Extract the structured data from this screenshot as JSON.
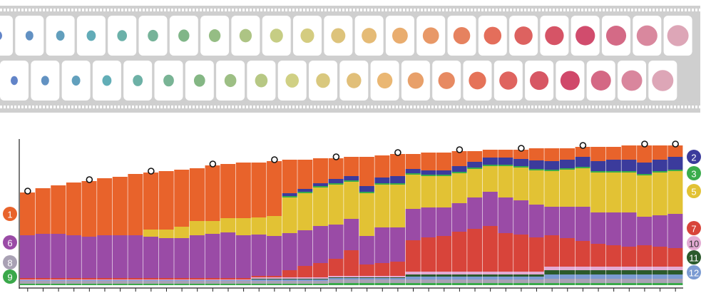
{
  "chart_data": {
    "type": "stacked-bar",
    "categories": [
      null,
      null,
      null,
      null,
      null,
      null,
      null,
      null,
      null,
      null,
      null,
      null,
      null,
      null,
      null,
      null,
      null,
      null,
      null,
      null,
      null,
      null,
      null,
      null,
      null,
      null,
      null,
      null,
      null,
      null,
      null,
      null,
      null,
      null,
      null,
      null,
      null,
      null,
      null,
      null,
      null,
      null,
      null
    ],
    "ylim": [
      0,
      100
    ],
    "markers": [
      0,
      4,
      8,
      12,
      16,
      20,
      24,
      28,
      32,
      36,
      40,
      42
    ],
    "series": [
      {
        "name": "9",
        "color": "#3aa84a",
        "values": [
          1,
          1,
          1,
          1,
          1,
          1,
          1,
          1,
          1,
          1,
          1,
          1,
          1,
          1,
          1,
          1,
          1,
          1,
          1,
          1,
          1.5,
          1.5,
          1.5,
          1.5,
          1.5,
          1.5,
          1.5,
          1.5,
          1.5,
          1.5,
          1.5,
          1.5,
          1.5,
          1.5,
          1.5,
          1.5,
          1.5,
          1.5,
          1.5,
          1.5,
          1.5,
          1.5,
          1.5
        ]
      },
      {
        "name": "8",
        "color": "#a9a1b4",
        "values": [
          2,
          2,
          2,
          2,
          2,
          2,
          2,
          2,
          2,
          2,
          2,
          2,
          2,
          2,
          2,
          2,
          2,
          2,
          2,
          2,
          2.5,
          2.5,
          2.5,
          2.5,
          2.5,
          2.5,
          2.5,
          2.5,
          2.5,
          2.5,
          2.5,
          2.5,
          2.5,
          2.5,
          3,
          3,
          3,
          3,
          3,
          3,
          3,
          3,
          3
        ]
      },
      {
        "name": "12",
        "color": "#7b9bd2",
        "values": [
          0.5,
          0.5,
          0.5,
          0.5,
          0.5,
          0.5,
          0.5,
          0.5,
          0.5,
          0.5,
          0.5,
          0.5,
          0.5,
          0.5,
          0.5,
          1,
          1,
          1,
          1,
          1,
          1,
          1,
          1,
          1,
          1,
          2,
          2,
          2,
          2,
          2,
          2,
          2,
          2,
          2,
          3,
          3,
          3,
          3,
          3,
          3,
          3,
          3,
          3
        ]
      },
      {
        "name": "11",
        "color": "#2b5a2c",
        "values": [
          0,
          0,
          0,
          0,
          0,
          0,
          0,
          0,
          0,
          0,
          0,
          0,
          0,
          0,
          0,
          0.5,
          0.5,
          0.5,
          0.5,
          0.5,
          0.5,
          0.5,
          0.5,
          0.5,
          0.5,
          1.5,
          1.5,
          1.5,
          1.5,
          1.5,
          1.5,
          1.5,
          1.5,
          1.5,
          3,
          3,
          3,
          3,
          3,
          3,
          3,
          3,
          3
        ]
      },
      {
        "name": "10",
        "color": "#e3aad3",
        "values": [
          0.5,
          0.5,
          0.5,
          0.5,
          0.5,
          0.5,
          0.5,
          0.5,
          0.5,
          0.5,
          0.5,
          0.5,
          0.5,
          0.5,
          0.5,
          1,
          1,
          1,
          1,
          1,
          1,
          1,
          1,
          1,
          1,
          2,
          2,
          2,
          2,
          2,
          2,
          2,
          2,
          2,
          2.5,
          2.5,
          2.5,
          2.5,
          2.5,
          2.5,
          2.5,
          2.5,
          2.5
        ]
      },
      {
        "name": "7",
        "color": "#d8443a",
        "values": [
          1,
          1,
          1,
          1,
          1,
          1,
          1,
          1,
          1,
          1,
          1,
          1,
          1,
          1,
          1,
          1,
          1,
          5,
          8,
          10,
          12,
          18,
          8,
          9,
          10,
          22,
          24,
          25,
          28,
          30,
          32,
          27,
          26,
          24,
          22,
          20,
          18,
          16,
          15,
          14,
          15,
          14,
          13
        ]
      },
      {
        "name": "6",
        "color": "#9a4ba6",
        "values": [
          30,
          31,
          31,
          30,
          29,
          30,
          30,
          30,
          29,
          28,
          28,
          30,
          31,
          32,
          30,
          29,
          28,
          26,
          25,
          26,
          24,
          22,
          20,
          25,
          24,
          22,
          21,
          20,
          20,
          22,
          24,
          25,
          24,
          23,
          20,
          22,
          24,
          22,
          23,
          24,
          20,
          22,
          24
        ]
      },
      {
        "name": "5",
        "color": "#e2c234",
        "values": [
          0,
          0,
          0,
          0,
          0,
          0,
          0,
          0,
          5,
          6,
          8,
          10,
          9,
          10,
          12,
          12,
          14,
          25,
          26,
          27,
          28,
          26,
          30,
          30,
          30,
          24,
          22,
          22,
          21,
          20,
          18,
          22,
          23,
          24,
          25,
          26,
          27,
          28,
          28,
          28,
          29,
          30,
          30
        ]
      },
      {
        "name": "3",
        "color": "#3aac4c",
        "values": [
          0,
          0,
          0,
          0,
          0,
          0,
          0,
          0,
          0,
          0,
          0,
          0,
          0,
          0,
          0,
          0,
          0,
          1,
          1,
          1,
          1,
          1,
          1,
          1,
          1,
          1,
          1,
          1,
          1,
          1,
          1,
          1,
          1,
          1,
          1,
          1,
          1,
          1,
          1,
          1,
          1,
          1,
          1
        ]
      },
      {
        "name": "2",
        "color": "#3b3b9c",
        "values": [
          0,
          0,
          0,
          0,
          0,
          0,
          0,
          0,
          0,
          0,
          0,
          0,
          0,
          0,
          0,
          0,
          0,
          2,
          2,
          2,
          3,
          3,
          4,
          4,
          5,
          3,
          3,
          3,
          4,
          4,
          5,
          5,
          5,
          6,
          6,
          6,
          7,
          7,
          8,
          8,
          8,
          8,
          9
        ]
      },
      {
        "name": "1",
        "color": "#e8632b",
        "values": [
          30,
          32,
          34,
          37,
          39,
          40,
          41,
          43,
          40,
          41,
          40,
          37,
          39,
          38,
          39,
          38.5,
          38.5,
          23.5,
          20.5,
          17.5,
          14.5,
          13.5,
          20.5,
          15.5,
          15.5,
          10.5,
          12.5,
          12.5,
          10.5,
          7.5,
          5.5,
          5.5,
          6.5,
          8.5,
          9,
          8,
          7,
          10,
          9,
          10,
          12,
          10,
          8
        ]
      }
    ]
  }
}
